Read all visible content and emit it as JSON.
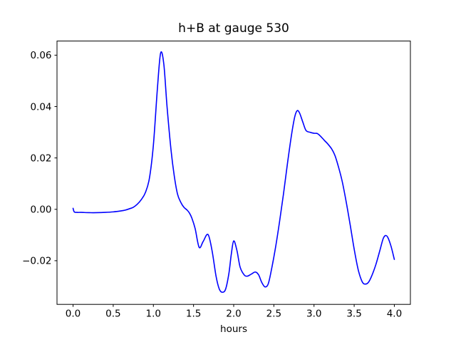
{
  "figure": {
    "title": "h+B at gauge 530",
    "xlabel": "hours"
  },
  "colors": {
    "line": "#0000ff",
    "axis": "#000000",
    "text": "#000000",
    "background": "#ffffff"
  },
  "chart_data": {
    "type": "line",
    "title": "h+B at gauge 530",
    "xlabel": "hours",
    "ylabel": "",
    "xlim": [
      -0.2,
      4.2
    ],
    "ylim": [
      -0.037,
      0.0655
    ],
    "xticks": [
      0.0,
      0.5,
      1.0,
      1.5,
      2.0,
      2.5,
      3.0,
      3.5,
      4.0
    ],
    "xtick_labels": [
      "0.0",
      "0.5",
      "1.0",
      "1.5",
      "2.0",
      "2.5",
      "3.0",
      "3.5",
      "4.0"
    ],
    "yticks": [
      -0.02,
      0.0,
      0.02,
      0.04,
      0.06
    ],
    "ytick_labels": [
      "−0.02",
      "0.00",
      "0.02",
      "0.04",
      "0.06"
    ],
    "grid": false,
    "legend": "none",
    "series": [
      {
        "name": "h+B",
        "color": "#0000ff",
        "x": [
          0.0,
          0.015,
          0.05,
          0.1,
          0.2,
          0.3,
          0.4,
          0.5,
          0.6,
          0.65,
          0.7,
          0.75,
          0.8,
          0.85,
          0.9,
          0.95,
          1.0,
          1.05,
          1.09,
          1.13,
          1.17,
          1.22,
          1.26,
          1.3,
          1.34,
          1.38,
          1.42,
          1.45,
          1.48,
          1.52,
          1.57,
          1.62,
          1.68,
          1.73,
          1.78,
          1.82,
          1.86,
          1.9,
          1.94,
          1.97,
          2.0,
          2.04,
          2.08,
          2.13,
          2.17,
          2.22,
          2.27,
          2.31,
          2.35,
          2.39,
          2.43,
          2.47,
          2.52,
          2.57,
          2.62,
          2.67,
          2.72,
          2.76,
          2.79,
          2.82,
          2.86,
          2.9,
          2.95,
          3.0,
          3.04,
          3.08,
          3.13,
          3.17,
          3.22,
          3.26,
          3.3,
          3.35,
          3.4,
          3.45,
          3.5,
          3.55,
          3.6,
          3.64,
          3.68,
          3.72,
          3.77,
          3.82,
          3.86,
          3.89,
          3.92,
          3.96,
          4.0
        ],
        "y": [
          0.0004,
          -0.001,
          -0.0012,
          -0.0012,
          -0.0013,
          -0.0013,
          -0.0012,
          -0.001,
          -0.0006,
          -0.0003,
          0.0002,
          0.0008,
          0.002,
          0.0038,
          0.0065,
          0.012,
          0.025,
          0.047,
          0.0608,
          0.0565,
          0.04,
          0.023,
          0.013,
          0.006,
          0.0028,
          0.0008,
          -0.0003,
          -0.0015,
          -0.0035,
          -0.0075,
          -0.0148,
          -0.0125,
          -0.0098,
          -0.016,
          -0.026,
          -0.031,
          -0.0323,
          -0.031,
          -0.025,
          -0.0175,
          -0.0123,
          -0.016,
          -0.0225,
          -0.0255,
          -0.026,
          -0.0252,
          -0.0244,
          -0.0255,
          -0.0285,
          -0.0302,
          -0.029,
          -0.0235,
          -0.015,
          -0.005,
          0.006,
          0.018,
          0.029,
          0.036,
          0.0384,
          0.0375,
          0.034,
          0.0307,
          0.03,
          0.0296,
          0.0295,
          0.0285,
          0.0268,
          0.0255,
          0.0235,
          0.021,
          0.017,
          0.011,
          0.003,
          -0.006,
          -0.0155,
          -0.0235,
          -0.0282,
          -0.0291,
          -0.0283,
          -0.0258,
          -0.0215,
          -0.016,
          -0.0115,
          -0.0102,
          -0.011,
          -0.0145,
          -0.0195
        ]
      }
    ]
  }
}
